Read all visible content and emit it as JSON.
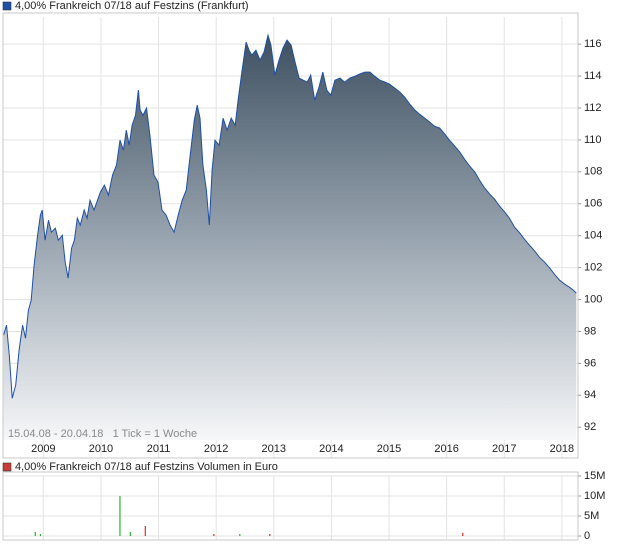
{
  "chart_data": [
    {
      "type": "area",
      "annotation": "15.04.08 - 20.04.18   1 Tick = 1 Woche",
      "x": [
        2008.31,
        2008.36,
        2008.41,
        2008.46,
        2008.52,
        2008.58,
        2008.64,
        2008.69,
        2008.74,
        2008.79,
        2008.84,
        2008.9,
        2008.95,
        2008.98,
        2009.03,
        2009.09,
        2009.14,
        2009.21,
        2009.26,
        2009.33,
        2009.38,
        2009.43,
        2009.49,
        2009.54,
        2009.59,
        2009.64,
        2009.71,
        2009.76,
        2009.81,
        2009.88,
        2009.94,
        2009.99,
        2010.06,
        2010.13,
        2010.2,
        2010.27,
        2010.33,
        2010.39,
        2010.44,
        2010.49,
        2010.54,
        2010.6,
        2010.65,
        2010.68,
        2010.73,
        2010.79,
        2010.85,
        2010.92,
        2010.99,
        2011.06,
        2011.13,
        2011.2,
        2011.27,
        2011.34,
        2011.41,
        2011.48,
        2011.55,
        2011.62,
        2011.67,
        2011.72,
        2011.77,
        2011.83,
        2011.88,
        2011.93,
        2011.98,
        2012.05,
        2012.12,
        2012.19,
        2012.26,
        2012.33,
        2012.38,
        2012.45,
        2012.52,
        2012.57,
        2012.62,
        2012.69,
        2012.76,
        2012.83,
        2012.9,
        2012.95,
        2013.02,
        2013.09,
        2013.16,
        2013.23,
        2013.3,
        2013.37,
        2013.44,
        2013.51,
        2013.58,
        2013.64,
        2013.71,
        2013.78,
        2013.85,
        2013.92,
        2013.99,
        2014.06,
        2014.15,
        2014.23,
        2014.32,
        2014.41,
        2014.49,
        2014.58,
        2014.67,
        2014.75,
        2014.84,
        2014.93,
        2015.01,
        2015.1,
        2015.19,
        2015.27,
        2015.36,
        2015.45,
        2015.53,
        2015.62,
        2015.71,
        2015.79,
        2015.88,
        2015.97,
        2016.05,
        2016.14,
        2016.23,
        2016.31,
        2016.4,
        2016.49,
        2016.57,
        2016.66,
        2016.75,
        2016.83,
        2016.92,
        2017.01,
        2017.09,
        2017.18,
        2017.27,
        2017.35,
        2017.44,
        2017.53,
        2017.61,
        2017.7,
        2017.79,
        2017.87,
        2017.96,
        2018.05,
        2018.13,
        2018.2,
        2018.25
      ],
      "series": [
        {
          "name": "4,00% Frankreich 07/18 auf Festzins (Frankfurt)",
          "color": "#1f4fa8",
          "values": [
            97.77,
            98.39,
            96.51,
            93.82,
            94.63,
            96.83,
            98.39,
            97.58,
            99.33,
            99.96,
            102.15,
            104.03,
            105.29,
            105.6,
            103.72,
            104.97,
            104.22,
            104.47,
            103.72,
            104.03,
            102.34,
            101.34,
            103.22,
            103.72,
            105.1,
            104.66,
            105.6,
            105.1,
            106.22,
            105.6,
            106.22,
            106.73,
            107.17,
            106.54,
            107.79,
            108.42,
            109.98,
            109.36,
            110.61,
            109.67,
            110.92,
            111.55,
            113.12,
            111.87,
            111.55,
            111.99,
            110.3,
            107.79,
            107.35,
            105.6,
            105.29,
            104.66,
            104.22,
            105.29,
            106.22,
            106.85,
            109.04,
            111.24,
            112.18,
            111.36,
            108.42,
            106.85,
            104.66,
            108.1,
            109.98,
            109.67,
            111.36,
            110.61,
            111.36,
            110.92,
            112.49,
            114.37,
            116.13,
            115.62,
            115.31,
            115.62,
            115.0,
            115.5,
            116.56,
            115.94,
            114.06,
            115.0,
            115.75,
            116.25,
            115.94,
            114.87,
            113.87,
            113.74,
            113.62,
            114.06,
            112.49,
            113.24,
            114.25,
            113.12,
            112.8,
            113.74,
            113.87,
            113.62,
            113.87,
            113.99,
            114.12,
            114.25,
            114.25,
            113.99,
            113.74,
            113.62,
            113.49,
            113.24,
            112.99,
            112.68,
            112.24,
            111.87,
            111.61,
            111.36,
            111.11,
            110.86,
            110.74,
            110.36,
            109.98,
            109.61,
            109.23,
            108.79,
            108.36,
            107.98,
            107.48,
            106.98,
            106.6,
            106.29,
            105.85,
            105.47,
            105.1,
            104.53,
            104.16,
            103.78,
            103.4,
            103.03,
            102.65,
            102.34,
            101.96,
            101.59,
            101.21,
            100.96,
            100.77,
            100.58,
            100.4
          ]
        }
      ],
      "xlim": [
        2008.3,
        2018.28
      ],
      "xticks": [
        2009,
        2010,
        2011,
        2012,
        2013,
        2014,
        2015,
        2016,
        2017,
        2018
      ],
      "ylim": [
        91.2,
        117.7
      ],
      "yticks": [
        92,
        94,
        96,
        98,
        100,
        102,
        104,
        106,
        108,
        110,
        112,
        114,
        116
      ],
      "grid": true
    },
    {
      "type": "bar",
      "x": [
        2008.86,
        2008.95,
        2010.33,
        2010.51,
        2010.77,
        2011.96,
        2012.41,
        2012.93,
        2016.28
      ],
      "series": [
        {
          "name": "4,00% Frankreich 07/18 auf Festzins Volumen in Euro",
          "color": "#c83c3c",
          "values": [
            1000000,
            500000,
            10000000,
            1000000,
            2500000,
            500000,
            500000,
            500000,
            800000
          ],
          "colors": [
            "#30b030",
            "#30b030",
            "#30b030",
            "#30b030",
            "#d03030",
            "#d03030",
            "#30b030",
            "#d03030",
            "#d03030"
          ]
        }
      ],
      "xlim": [
        2008.3,
        2018.28
      ],
      "xticks": [
        2009,
        2010,
        2011,
        2012,
        2013,
        2014,
        2015,
        2016,
        2017,
        2018
      ],
      "ylim": [
        0,
        15000000
      ],
      "yticks": [
        0,
        {
          "value": 5000000,
          "label": "5M"
        },
        {
          "value": 10000000,
          "label": "10M"
        },
        {
          "value": 15000000,
          "label": "15M"
        }
      ],
      "grid": true
    }
  ]
}
